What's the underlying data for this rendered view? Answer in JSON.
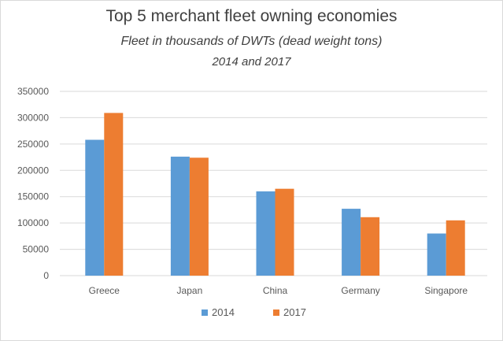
{
  "chart_data": {
    "type": "bar",
    "title": "Top 5 merchant fleet owning economies",
    "subtitle": "Fleet in thousands  of DWTs (dead weight tons)",
    "subtitle2": "2014  and 2017",
    "xlabel": "",
    "ylabel": "",
    "categories": [
      "Greece",
      "Japan",
      "China",
      "Germany",
      "Singapore"
    ],
    "series": [
      {
        "name": "2014",
        "color": "#5b9bd5",
        "values": [
          258000,
          226000,
          160000,
          127000,
          80000
        ]
      },
      {
        "name": "2017",
        "color": "#ed7d31",
        "values": [
          309000,
          224000,
          165000,
          111000,
          105000
        ]
      }
    ],
    "ylim": [
      0,
      350000
    ],
    "yticks": [
      0,
      50000,
      100000,
      150000,
      200000,
      250000,
      300000,
      350000
    ],
    "grid": true,
    "legend": "bottom"
  }
}
